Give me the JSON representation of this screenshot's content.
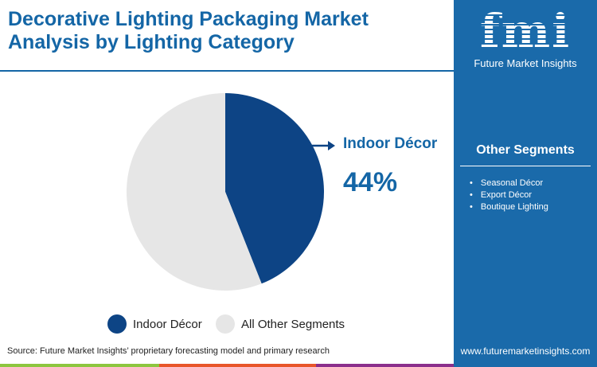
{
  "title": "Decorative Lighting Packaging Market Analysis by Lighting Category",
  "brand": {
    "logo_text": "fmi",
    "name": "Future Market Insights",
    "url": "www.futuremarketinsights.com"
  },
  "other_segments": {
    "heading": "Other Segments",
    "items": [
      "Seasonal Décor",
      "Export Décor",
      "Boutique Lighting"
    ]
  },
  "source": "Source: Future Market Insights’ proprietary forecasting model and primary research",
  "colors": {
    "primary": "#0d4485",
    "other": "#e6e6e6",
    "brand": "#1a6aaa"
  },
  "chart_data": {
    "type": "pie",
    "slices": [
      {
        "label": "Indoor Décor",
        "value": 44,
        "color": "#0d4485"
      },
      {
        "label": "All Other Segments",
        "value": 56,
        "color": "#e6e6e6"
      }
    ],
    "callout": {
      "label": "Indoor Décor",
      "value": "44%"
    },
    "legend": [
      "Indoor Décor",
      "All Other Segments"
    ],
    "legend_placement": "bottom"
  }
}
